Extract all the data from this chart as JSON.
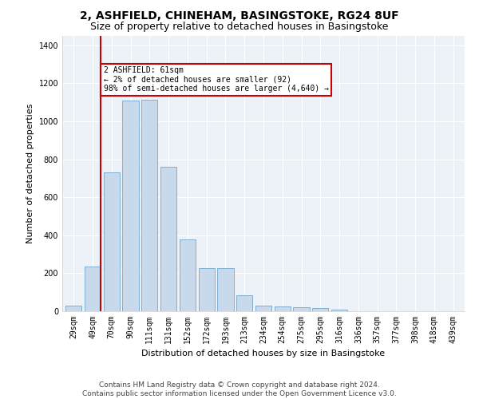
{
  "title": "2, ASHFIELD, CHINEHAM, BASINGSTOKE, RG24 8UF",
  "subtitle": "Size of property relative to detached houses in Basingstoke",
  "xlabel": "Distribution of detached houses by size in Basingstoke",
  "ylabel": "Number of detached properties",
  "bar_color": "#c8d9ec",
  "bar_edge_color": "#7fafd4",
  "background_color": "#edf2f9",
  "grid_color": "#ffffff",
  "fig_background": "#ffffff",
  "vline_color": "#cc0000",
  "vline_x": 1.42,
  "annotation_text": "2 ASHFIELD: 61sqm\n← 2% of detached houses are smaller (92)\n98% of semi-detached houses are larger (4,640) →",
  "annotation_box_color": "#ffffff",
  "annotation_box_edge": "#cc0000",
  "categories": [
    "29sqm",
    "49sqm",
    "70sqm",
    "90sqm",
    "111sqm",
    "131sqm",
    "152sqm",
    "172sqm",
    "193sqm",
    "213sqm",
    "234sqm",
    "254sqm",
    "275sqm",
    "295sqm",
    "316sqm",
    "336sqm",
    "357sqm",
    "377sqm",
    "398sqm",
    "418sqm",
    "439sqm"
  ],
  "values": [
    30,
    235,
    730,
    1110,
    1115,
    760,
    380,
    225,
    225,
    85,
    30,
    25,
    20,
    15,
    10,
    0,
    0,
    0,
    0,
    0,
    0
  ],
  "ylim": [
    0,
    1450
  ],
  "yticks": [
    0,
    200,
    400,
    600,
    800,
    1000,
    1200,
    1400
  ],
  "footer_text": "Contains HM Land Registry data © Crown copyright and database right 2024.\nContains public sector information licensed under the Open Government Licence v3.0.",
  "title_fontsize": 10,
  "subtitle_fontsize": 9,
  "axis_label_fontsize": 8,
  "tick_fontsize": 7,
  "annotation_fontsize": 7,
  "footer_fontsize": 6.5
}
